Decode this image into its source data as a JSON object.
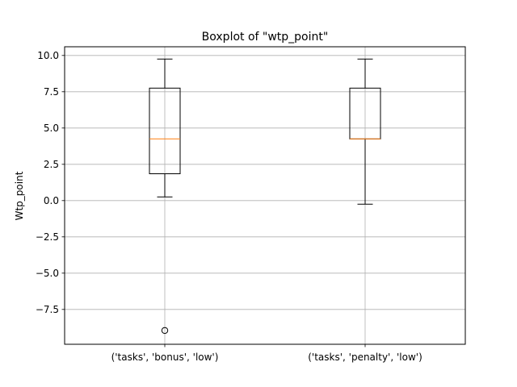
{
  "chart_data": {
    "type": "boxplot",
    "title": "Boxplot of \"wtp_point\"",
    "xlabel": "",
    "ylabel": "Wtp_point",
    "ylim": [
      -9.9,
      10.6
    ],
    "grid": true,
    "yticks": [
      10.0,
      7.5,
      5.0,
      2.5,
      0.0,
      -2.5,
      -5.0,
      -7.5
    ],
    "ytick_labels": [
      "10.0",
      "7.5",
      "5.0",
      "2.5",
      "0.0",
      "−2.5",
      "−5.0",
      "−7.5"
    ],
    "categories": [
      "('tasks', 'bonus', 'low')",
      "('tasks', 'penalty', 'low')"
    ],
    "boxes": [
      {
        "category": "('tasks', 'bonus', 'low')",
        "whisker_low": 0.25,
        "q1": 1.85,
        "median": 4.25,
        "q3": 7.75,
        "whisker_high": 9.75,
        "outliers": [
          -8.95
        ]
      },
      {
        "category": "('tasks', 'penalty', 'low')",
        "whisker_low": -0.25,
        "q1": 4.25,
        "median": 4.25,
        "q3": 7.75,
        "whisker_high": 9.75,
        "outliers": []
      }
    ],
    "colors": {
      "box": "#000000",
      "median": "#ff7f0e",
      "grid": "#b0b0b0",
      "axes": "#000000"
    }
  }
}
